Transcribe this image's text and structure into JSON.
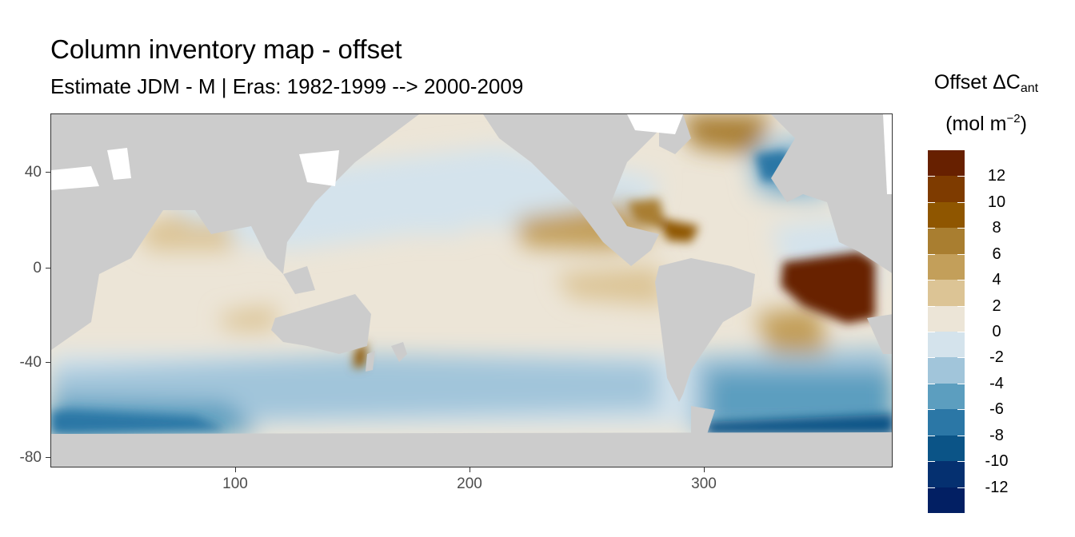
{
  "title": "Column inventory map - offset",
  "subtitle": "Estimate JDM - M | Eras: 1982-1999 --> 2000-2009",
  "legend": {
    "title_main": "Offset ΔC",
    "title_sub": "ant",
    "unit_prefix": "(mol m",
    "unit_sup": "−2",
    "unit_suffix": ")",
    "labels": [
      "12",
      "10",
      "8",
      "6",
      "4",
      "2",
      "0",
      "-2",
      "-4",
      "-6",
      "-8",
      "-10",
      "-12"
    ],
    "colors": [
      "#672000",
      "#7e3b00",
      "#8f5600",
      "#a97e30",
      "#c39f5a",
      "#dcc495",
      "#ece5d7",
      "#d4e3ec",
      "#a1c5da",
      "#5c9ebf",
      "#2b77a6",
      "#0b5487",
      "#053070",
      "#021f63"
    ]
  },
  "axes": {
    "x_ticks": [
      "100",
      "200",
      "300"
    ],
    "y_ticks": [
      "40",
      "0",
      "-40",
      "-80"
    ]
  },
  "chart_data": {
    "type": "heatmap",
    "title": "Column inventory map - offset",
    "subtitle": "Estimate JDM - M | Eras: 1982-1999 --> 2000-2009",
    "xlabel": "",
    "ylabel": "",
    "xlim": [
      20,
      380
    ],
    "ylim": [
      -85,
      65
    ],
    "x_ticks": [
      100,
      200,
      300
    ],
    "y_ticks": [
      40,
      0,
      -40,
      -80
    ],
    "legend_title": "Offset ΔCant (mol m−2)",
    "legend_placement": "right",
    "color_breaks": [
      -12,
      -10,
      -8,
      -6,
      -4,
      -2,
      0,
      2,
      4,
      6,
      8,
      10,
      12
    ],
    "land_color": "#cccccc",
    "regions": [
      {
        "lon": 340,
        "lat": -10,
        "value": 13
      },
      {
        "lon": 320,
        "lat": 40,
        "value": -5
      },
      {
        "lon": 300,
        "lat": 55,
        "value": 8
      },
      {
        "lon": 250,
        "lat": 10,
        "value": 5
      },
      {
        "lon": 260,
        "lat": -15,
        "value": 4
      },
      {
        "lon": 330,
        "lat": -30,
        "value": 5
      },
      {
        "lon": 330,
        "lat": -50,
        "value": -5
      },
      {
        "lon": 40,
        "lat": -62,
        "value": -7
      },
      {
        "lon": 350,
        "lat": -65,
        "value": -9
      },
      {
        "lon": 180,
        "lat": -55,
        "value": -3
      },
      {
        "lon": 180,
        "lat": 10,
        "value": 1
      },
      {
        "lon": 150,
        "lat": -38,
        "value": 6
      },
      {
        "lon": 140,
        "lat": 45,
        "value": -1
      },
      {
        "lon": 80,
        "lat": 10,
        "value": 2
      }
    ]
  }
}
